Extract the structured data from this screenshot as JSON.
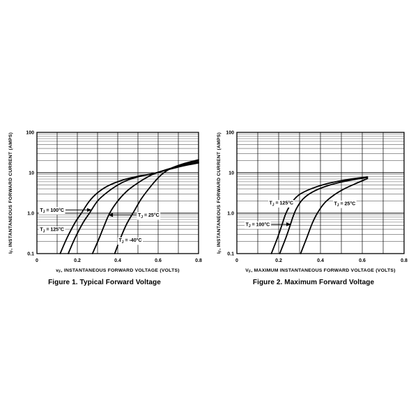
{
  "colors": {
    "ink": "#000000",
    "grid_minor": "#5a5a5a",
    "background": "#ffffff"
  },
  "chart_data": [
    {
      "type": "line",
      "title": "Figure 1. Typical Forward Voltage",
      "xlabel": {
        "pre": "v",
        "sub": "F",
        "rest": ", INSTANTANEOUS FORWARD VOLTAGE (VOLTS)"
      },
      "ylabel": {
        "pre": "I",
        "sub": "F",
        "rest": ", INSTANTANEOUS FORWARD CURRENT (AMPS)"
      },
      "xlim": [
        0,
        0.8
      ],
      "x_grid_step": 0.1,
      "xticks": [
        {
          "v": 0,
          "label": "0"
        },
        {
          "v": 0.2,
          "label": "0.2"
        },
        {
          "v": 0.4,
          "label": "0.4"
        },
        {
          "v": 0.6,
          "label": "0.6"
        },
        {
          "v": 0.8,
          "label": "0.8"
        }
      ],
      "yscale": "log",
      "ylog": {
        "min_exp": -1,
        "max_exp": 2,
        "ticks": [
          {
            "exp": 2,
            "label": "100"
          },
          {
            "exp": 1,
            "label": "10"
          },
          {
            "exp": 0,
            "label": "1.0"
          },
          {
            "exp": -1,
            "label": "0.1"
          }
        ]
      },
      "grid": true,
      "series": [
        {
          "id": "tj-125c",
          "name": "TJ = 125°C",
          "points": [
            [
              0.115,
              0.1
            ],
            [
              0.15,
              0.25
            ],
            [
              0.19,
              0.6
            ],
            [
              0.22,
              1.0
            ],
            [
              0.26,
              2.0
            ],
            [
              0.3,
              3.2
            ],
            [
              0.35,
              4.7
            ],
            [
              0.42,
              6.5
            ],
            [
              0.5,
              8.2
            ],
            [
              0.575,
              9.5
            ],
            [
              0.65,
              12
            ],
            [
              0.73,
              15
            ],
            [
              0.8,
              17.5
            ]
          ]
        },
        {
          "id": "tj-100c",
          "name": "TJ = 100°C",
          "points": [
            [
              0.155,
              0.1
            ],
            [
              0.19,
              0.25
            ],
            [
              0.23,
              0.6
            ],
            [
              0.26,
              1.0
            ],
            [
              0.3,
              2.0
            ],
            [
              0.345,
              3.2
            ],
            [
              0.395,
              4.8
            ],
            [
              0.45,
              6.6
            ],
            [
              0.52,
              8.4
            ],
            [
              0.578,
              9.6
            ],
            [
              0.65,
              12.2
            ],
            [
              0.73,
              15.3
            ],
            [
              0.8,
              18
            ]
          ]
        },
        {
          "id": "tj-25c",
          "name": "TJ = 25°C",
          "points": [
            [
              0.275,
              0.1
            ],
            [
              0.305,
              0.22
            ],
            [
              0.33,
              0.45
            ],
            [
              0.36,
              1.0
            ],
            [
              0.4,
              2.0
            ],
            [
              0.445,
              3.5
            ],
            [
              0.49,
              5.2
            ],
            [
              0.53,
              7.0
            ],
            [
              0.575,
              9.2
            ],
            [
              0.63,
              11.5
            ],
            [
              0.71,
              15
            ],
            [
              0.8,
              19.5
            ]
          ]
        },
        {
          "id": "tj-minus40c",
          "name": "TJ = -40°C",
          "points": [
            [
              0.385,
              0.1
            ],
            [
              0.415,
              0.25
            ],
            [
              0.445,
              0.55
            ],
            [
              0.48,
              1.1
            ],
            [
              0.515,
              2.2
            ],
            [
              0.55,
              3.8
            ],
            [
              0.585,
              6.2
            ],
            [
              0.62,
              9.3
            ],
            [
              0.665,
              13
            ],
            [
              0.73,
              17
            ],
            [
              0.8,
              21
            ]
          ]
        }
      ],
      "annotations": [
        {
          "id": "label-tj-100c",
          "label": {
            "pre": "T",
            "sub": "J",
            "rest": " = 100°C"
          },
          "x": 0.015,
          "y": 1.2,
          "arrow_to_x": 0.272
        },
        {
          "id": "label-tj-25c",
          "label": {
            "pre": "T",
            "sub": "J",
            "rest": " = 25°C"
          },
          "x": 0.5,
          "y": 0.9,
          "arrow_to_x": 0.352
        },
        {
          "id": "label-tj-125c",
          "label": {
            "pre": "T",
            "sub": "J",
            "rest": " = 125°C"
          },
          "x": 0.015,
          "y": 0.4
        },
        {
          "id": "label-tj-minus40c",
          "label": {
            "pre": "T",
            "sub": "J",
            "rest": " = -40°C"
          },
          "x": 0.405,
          "y": 0.215
        }
      ]
    },
    {
      "type": "line",
      "title": "Figure 2. Maximum Forward Voltage",
      "xlabel": {
        "pre": "V",
        "sub": "F",
        "rest": ", MAXIMUM INSTANTANEOUS FORWARD VOLTAGE (VOLTS)"
      },
      "ylabel": {
        "pre": "I",
        "sub": "F",
        "rest": ", INSTANTANEOUS FORWARD CURRENT (AMPS)"
      },
      "xlim": [
        0,
        0.8
      ],
      "x_grid_step": 0.1,
      "xticks": [
        {
          "v": 0,
          "label": "0"
        },
        {
          "v": 0.2,
          "label": "0.2"
        },
        {
          "v": 0.4,
          "label": "0.4"
        },
        {
          "v": 0.6,
          "label": "0.6"
        },
        {
          "v": 0.8,
          "label": "0.8"
        }
      ],
      "yscale": "log",
      "ylog": {
        "min_exp": -1,
        "max_exp": 2,
        "ticks": [
          {
            "exp": 2,
            "label": "100"
          },
          {
            "exp": 1,
            "label": "10"
          },
          {
            "exp": 0,
            "label": "1.0"
          },
          {
            "exp": -1,
            "label": "0.1"
          }
        ]
      },
      "grid": true,
      "series": [
        {
          "id": "tj-125c",
          "name": "TJ = 125°C",
          "points": [
            [
              0.165,
              0.1
            ],
            [
              0.195,
              0.25
            ],
            [
              0.215,
              0.5
            ],
            [
              0.235,
              1.0
            ],
            [
              0.265,
              1.9
            ],
            [
              0.3,
              2.9
            ],
            [
              0.36,
              4.1
            ],
            [
              0.44,
              5.5
            ],
            [
              0.53,
              6.8
            ],
            [
              0.625,
              7.9
            ]
          ]
        },
        {
          "id": "tj-100c",
          "name": "TJ = 100°C",
          "points": [
            [
              0.205,
              0.1
            ],
            [
              0.235,
              0.25
            ],
            [
              0.255,
              0.5
            ],
            [
              0.268,
              0.8
            ],
            [
              0.285,
              1.3
            ],
            [
              0.315,
              2.2
            ],
            [
              0.36,
              3.3
            ],
            [
              0.43,
              4.7
            ],
            [
              0.52,
              6.2
            ],
            [
              0.625,
              7.7
            ]
          ]
        },
        {
          "id": "tj-25c",
          "name": "TJ = 25°C",
          "points": [
            [
              0.305,
              0.1
            ],
            [
              0.335,
              0.25
            ],
            [
              0.36,
              0.55
            ],
            [
              0.385,
              1.0
            ],
            [
              0.42,
              1.8
            ],
            [
              0.46,
              2.7
            ],
            [
              0.51,
              3.9
            ],
            [
              0.565,
              5.3
            ],
            [
              0.625,
              7.2
            ]
          ]
        }
      ],
      "annotations": [
        {
          "id": "label-tj-125c",
          "label": {
            "pre": "T",
            "sub": "J",
            "rest": " = 125°C"
          },
          "x": 0.155,
          "y": 1.8
        },
        {
          "id": "label-tj-25c",
          "label": {
            "pre": "T",
            "sub": "J",
            "rest": " = 25°C"
          },
          "x": 0.465,
          "y": 1.75
        },
        {
          "id": "label-tj-100c",
          "label": {
            "pre": "T",
            "sub": "J",
            "rest": " = 100°C"
          },
          "x": 0.042,
          "y": 0.53,
          "arrow_to_x": 0.26
        }
      ]
    }
  ]
}
